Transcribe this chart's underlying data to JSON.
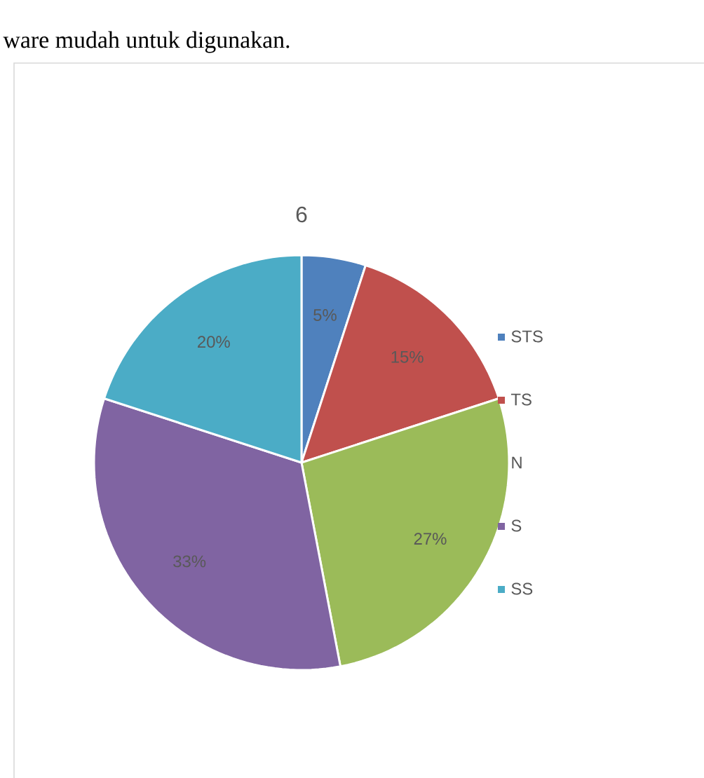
{
  "chart_data": {
    "type": "pie",
    "title": "6",
    "annotations": [
      "ware mudah untuk digunakan."
    ],
    "categories": [
      "STS",
      "TS",
      "N",
      "S",
      "SS"
    ],
    "values": [
      5,
      15,
      27,
      33,
      20
    ],
    "value_labels": [
      "5%",
      "15%",
      "27%",
      "33%",
      "20%"
    ],
    "colors": [
      "#4f81bd",
      "#c0504d",
      "#9bbb59",
      "#8064a2",
      "#4bacc6"
    ],
    "legend": "right"
  }
}
